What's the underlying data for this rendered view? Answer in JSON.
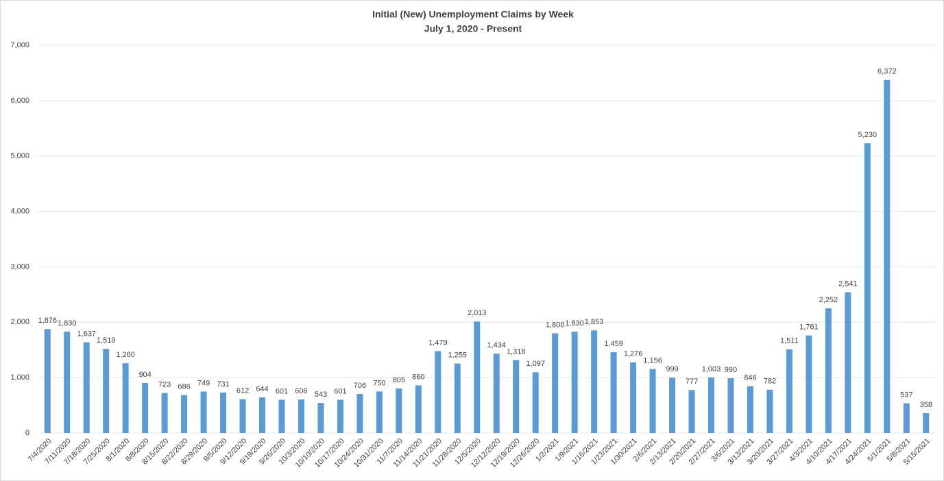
{
  "chart_data": {
    "type": "bar",
    "title": "Initial (New) Unemployment Claims by Week",
    "subtitle": "July 1, 2020 - Present",
    "categories": [
      "7/4/2020",
      "7/11/2020",
      "7/18/2020",
      "7/25/2020",
      "8/1/2020",
      "8/8/2020",
      "8/15/2020",
      "8/22/2020",
      "8/29/2020",
      "9/5/2020",
      "9/12/2020",
      "9/19/2020",
      "9/26/2020",
      "10/3/2020",
      "10/10/2020",
      "10/17/2020",
      "10/24/2020",
      "10/31/2020",
      "11/7/2020",
      "11/14/2020",
      "11/21/2020",
      "11/28/2020",
      "12/5/2020",
      "12/12/2020",
      "12/19/2020",
      "12/26/2020",
      "1/2/2021",
      "1/9/2021",
      "1/16/2021",
      "1/23/2021",
      "1/30/2021",
      "2/6/2021",
      "2/13/2021",
      "2/20/2021",
      "2/27/2021",
      "3/6/2021",
      "3/13/2021",
      "3/20/2021",
      "3/27/2021",
      "4/3/2021",
      "4/10/2021",
      "4/17/2021",
      "4/24/2021",
      "5/1/2021",
      "5/8/2021",
      "5/15/2021"
    ],
    "values": [
      1876,
      1830,
      1637,
      1519,
      1260,
      904,
      723,
      686,
      749,
      731,
      612,
      644,
      601,
      606,
      543,
      601,
      706,
      750,
      805,
      860,
      1479,
      1255,
      2013,
      1434,
      1318,
      1097,
      1800,
      1830,
      1853,
      1459,
      1276,
      1156,
      999,
      777,
      1003,
      990,
      846,
      782,
      1511,
      1761,
      2252,
      2541,
      5230,
      6372,
      537,
      358
    ],
    "value_labels": [
      "1,876",
      "1,830",
      "1,637",
      "1,519",
      "1,260",
      "904",
      "723",
      "686",
      "749",
      "731",
      "612",
      "644",
      "601",
      "606",
      "543",
      "601",
      "706",
      "750",
      "805",
      "860",
      "1,479",
      "1,255",
      "2,013",
      "1,434",
      "1,318",
      "1,097",
      "1,800",
      "1,830",
      "1,853",
      "1,459",
      "1,276",
      "1,156",
      "999",
      "777",
      "1,003",
      "990",
      "846",
      "782",
      "1,511",
      "1,761",
      "2,252",
      "2,541",
      "5,230",
      "6,372",
      "537",
      "358"
    ],
    "color": "#5b9bd5",
    "ylim": [
      0,
      7000
    ],
    "yticks": [
      0,
      {
        "value": 1000,
        "label": "1,000"
      },
      {
        "value": 2000,
        "label": "2,000"
      },
      {
        "value": 3000,
        "label": "3,000"
      },
      {
        "value": 4000,
        "label": "4,000"
      },
      {
        "value": 5000,
        "label": "5,000"
      },
      {
        "value": 6000,
        "label": "6,000"
      },
      {
        "value": 7000,
        "label": "7,000"
      }
    ],
    "grid": true
  }
}
